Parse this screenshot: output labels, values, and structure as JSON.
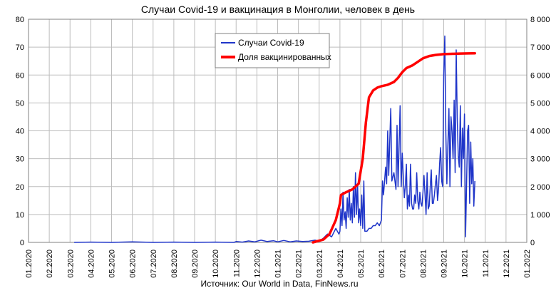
{
  "chart_data": {
    "type": "line",
    "title": "Случаи Covid-19 и вакцинация в Монголии, человек в день",
    "source": "Источник: Our World in Data, FinNews.ru",
    "x_ticks": [
      "01.2020",
      "02.2020",
      "03.2020",
      "04.2020",
      "05.2020",
      "06.2020",
      "07.2020",
      "08.2020",
      "09.2020",
      "10.2020",
      "11.2020",
      "12.2020",
      "01.2021",
      "02.2021",
      "03.2021",
      "04.2021",
      "05.2021",
      "06.2021",
      "07.2021",
      "08.2021",
      "09.2021",
      "10.2021",
      "11.2021",
      "12.2021",
      "01.2022"
    ],
    "y_left": {
      "min": 0,
      "max": 80,
      "ticks": [
        "0",
        "10",
        "20",
        "30",
        "40",
        "50",
        "60",
        "70",
        "80"
      ]
    },
    "y_right": {
      "min": 0,
      "max": 8000,
      "ticks": [
        "0",
        "1 000",
        "2 000",
        "3 000",
        "4 000",
        "5 000",
        "6 000",
        "7 000",
        "8 000"
      ]
    },
    "grid": true,
    "legend_position": "top-center",
    "colors": {
      "cases": "#1f35c9",
      "vacc": "#ff0000"
    },
    "series": [
      {
        "name": "Случаи Covid-19",
        "axis": "left",
        "points": [
          [
            2.2,
            0
          ],
          [
            3,
            0.1
          ],
          [
            4,
            0
          ],
          [
            5,
            0.2
          ],
          [
            6,
            0
          ],
          [
            7,
            0.1
          ],
          [
            8,
            0
          ],
          [
            9,
            0.1
          ],
          [
            9.9,
            0
          ],
          [
            10,
            0.3
          ],
          [
            10.3,
            0.1
          ],
          [
            10.6,
            0.5
          ],
          [
            10.9,
            0.2
          ],
          [
            11.2,
            0.8
          ],
          [
            11.5,
            0.3
          ],
          [
            11.8,
            0.6
          ],
          [
            12,
            0.2
          ],
          [
            12.3,
            0.7
          ],
          [
            12.6,
            0.2
          ],
          [
            12.9,
            0.5
          ],
          [
            13.2,
            0.3
          ],
          [
            13.5,
            0.4
          ],
          [
            13.8,
            0.8
          ],
          [
            14,
            0.4
          ],
          [
            14.2,
            1.5
          ],
          [
            14.4,
            3
          ],
          [
            14.6,
            2
          ],
          [
            14.8,
            5
          ],
          [
            14.95,
            3
          ],
          [
            15.0,
            4
          ],
          [
            15.05,
            12
          ],
          [
            15.1,
            6
          ],
          [
            15.15,
            18
          ],
          [
            15.2,
            8
          ],
          [
            15.25,
            11
          ],
          [
            15.3,
            5
          ],
          [
            15.35,
            16
          ],
          [
            15.4,
            9
          ],
          [
            15.45,
            19
          ],
          [
            15.5,
            8
          ],
          [
            15.55,
            14
          ],
          [
            15.6,
            7
          ],
          [
            15.65,
            20
          ],
          [
            15.7,
            9
          ],
          [
            15.75,
            25
          ],
          [
            15.8,
            10
          ],
          [
            15.85,
            21
          ],
          [
            15.9,
            7
          ],
          [
            15.95,
            12
          ],
          [
            16.0,
            6
          ],
          [
            16.05,
            17
          ],
          [
            16.1,
            5
          ],
          [
            16.15,
            22
          ],
          [
            16.2,
            4
          ],
          [
            16.3,
            4
          ],
          [
            16.4,
            5
          ],
          [
            16.5,
            5
          ],
          [
            16.6,
            6
          ],
          [
            16.7,
            6
          ],
          [
            16.8,
            7
          ],
          [
            16.9,
            6
          ],
          [
            17.0,
            8
          ],
          [
            17.05,
            22
          ],
          [
            17.1,
            17
          ],
          [
            17.2,
            27
          ],
          [
            17.25,
            21
          ],
          [
            17.3,
            40
          ],
          [
            17.35,
            24
          ],
          [
            17.45,
            48
          ],
          [
            17.5,
            22
          ],
          [
            17.6,
            25
          ],
          [
            17.7,
            19
          ],
          [
            17.75,
            42
          ],
          [
            17.8,
            20
          ],
          [
            17.9,
            49
          ],
          [
            17.95,
            20
          ],
          [
            18.0,
            32
          ],
          [
            18.05,
            24
          ],
          [
            18.1,
            16
          ],
          [
            18.15,
            20
          ],
          [
            18.2,
            28
          ],
          [
            18.25,
            12
          ],
          [
            18.3,
            17
          ],
          [
            18.35,
            13
          ],
          [
            18.4,
            28
          ],
          [
            18.45,
            14
          ],
          [
            18.5,
            12
          ],
          [
            18.55,
            12
          ],
          [
            18.6,
            17
          ],
          [
            18.65,
            14
          ],
          [
            18.7,
            25
          ],
          [
            18.75,
            15
          ],
          [
            18.8,
            12
          ],
          [
            18.85,
            18
          ],
          [
            18.9,
            14
          ],
          [
            18.95,
            13
          ],
          [
            19.0,
            18
          ],
          [
            19.05,
            24
          ],
          [
            19.1,
            17
          ],
          [
            19.15,
            10
          ],
          [
            19.2,
            25
          ],
          [
            19.25,
            12
          ],
          [
            19.3,
            13
          ],
          [
            19.35,
            20
          ],
          [
            19.4,
            26
          ],
          [
            19.45,
            14
          ],
          [
            19.5,
            14
          ],
          [
            19.55,
            17
          ],
          [
            19.6,
            21
          ],
          [
            19.65,
            24
          ],
          [
            19.7,
            15
          ],
          [
            19.75,
            19
          ],
          [
            19.8,
            28
          ],
          [
            19.85,
            34
          ],
          [
            19.9,
            22
          ],
          [
            19.95,
            20
          ],
          [
            20.0,
            60
          ],
          [
            20.05,
            74
          ],
          [
            20.1,
            40
          ],
          [
            20.15,
            21
          ],
          [
            20.2,
            35
          ],
          [
            20.25,
            48
          ],
          [
            20.3,
            20
          ],
          [
            20.35,
            45
          ],
          [
            20.4,
            40
          ],
          [
            20.45,
            30
          ],
          [
            20.5,
            51
          ],
          [
            20.55,
            25
          ],
          [
            20.6,
            69
          ],
          [
            20.65,
            45
          ],
          [
            20.7,
            31
          ],
          [
            20.75,
            27
          ],
          [
            20.8,
            49
          ],
          [
            20.85,
            20
          ],
          [
            20.9,
            41
          ],
          [
            20.95,
            30
          ],
          [
            21.0,
            46
          ],
          [
            21.05,
            2
          ],
          [
            21.1,
            20
          ],
          [
            21.15,
            40
          ],
          [
            21.2,
            42
          ],
          [
            21.25,
            14
          ],
          [
            21.3,
            36
          ],
          [
            21.35,
            21
          ],
          [
            21.4,
            30
          ],
          [
            21.45,
            13
          ],
          [
            21.5,
            22
          ]
        ]
      },
      {
        "name": "Доля вакцинированных",
        "axis": "right",
        "points": [
          [
            13.7,
            0
          ],
          [
            14.2,
            100
          ],
          [
            14.5,
            300
          ],
          [
            14.8,
            800
          ],
          [
            15.0,
            1400
          ],
          [
            15.05,
            1700
          ],
          [
            15.3,
            1800
          ],
          [
            15.6,
            1900
          ],
          [
            15.9,
            2100
          ],
          [
            16.1,
            3000
          ],
          [
            16.25,
            4300
          ],
          [
            16.4,
            5200
          ],
          [
            16.6,
            5450
          ],
          [
            16.8,
            5550
          ],
          [
            17.0,
            5600
          ],
          [
            17.3,
            5650
          ],
          [
            17.6,
            5750
          ],
          [
            17.8,
            5900
          ],
          [
            18.0,
            6100
          ],
          [
            18.2,
            6250
          ],
          [
            18.5,
            6350
          ],
          [
            18.8,
            6500
          ],
          [
            19.0,
            6600
          ],
          [
            19.3,
            6680
          ],
          [
            19.6,
            6720
          ],
          [
            20.0,
            6750
          ],
          [
            20.4,
            6760
          ],
          [
            20.8,
            6770
          ],
          [
            21.2,
            6775
          ],
          [
            21.5,
            6780
          ]
        ]
      }
    ]
  }
}
